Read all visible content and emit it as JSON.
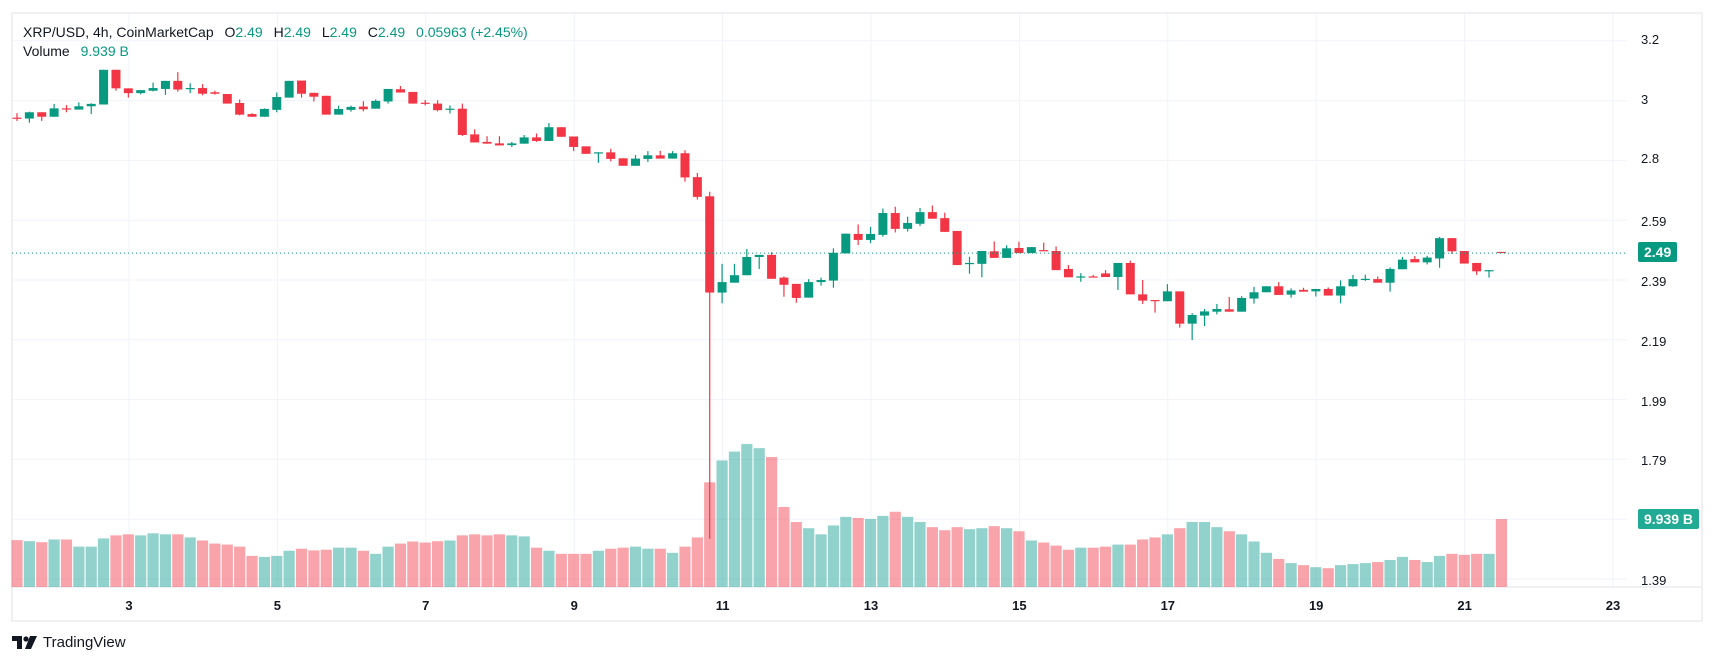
{
  "header": {
    "symbol": "XRP/USD, 4h, CoinMarketCap",
    "o_label": "O",
    "o_value": "2.49",
    "h_label": "H",
    "h_value": "2.49",
    "l_label": "L",
    "l_value": "2.49",
    "c_label": "C",
    "c_value": "2.49",
    "change": "0.05963 (+2.45%)",
    "volume_label": "Volume",
    "volume_value": "9.939 B"
  },
  "price_badge": "2.49",
  "volume_badge": "9.939 B",
  "brand": "TradingView",
  "colors": {
    "up": "#089981",
    "down": "#f23645",
    "up_volume": "rgba(38,166,154,0.5)",
    "down_volume": "rgba(242,54,69,0.45)",
    "grid": "#f0f3fa",
    "border": "#e0e3eb"
  },
  "chart_data": {
    "type": "candlestick",
    "title": "XRP/USD, 4h, CoinMarketCap",
    "interval": "4h",
    "last_price": 2.49,
    "volume_unit": "B",
    "y_ticks": [
      "3.2",
      "3",
      "2.8",
      "2.59",
      "2.39",
      "2.19",
      "1.99",
      "1.79",
      "1.39"
    ],
    "x_ticks": [
      "3",
      "5",
      "7",
      "9",
      "11",
      "13",
      "15",
      "17",
      "19",
      "21",
      "23"
    ],
    "ylim": [
      1.35,
      3.25
    ],
    "grid": true,
    "columns": [
      "open",
      "high",
      "low",
      "close",
      "volume_B"
    ],
    "candles": [
      [
        2.943,
        2.958,
        2.932,
        2.94,
        6.85
      ],
      [
        2.94,
        2.963,
        2.926,
        2.961,
        6.7
      ],
      [
        2.961,
        2.961,
        2.932,
        2.946,
        6.55
      ],
      [
        2.946,
        2.989,
        2.946,
        2.974,
        6.95
      ],
      [
        2.974,
        2.985,
        2.961,
        2.972,
        6.95
      ],
      [
        2.97,
        2.994,
        2.97,
        2.981,
        5.9
      ],
      [
        2.981,
        2.991,
        2.955,
        2.989,
        5.9
      ],
      [
        2.987,
        3.103,
        2.987,
        3.103,
        7.1
      ],
      [
        3.103,
        3.103,
        3.033,
        3.041,
        7.55
      ],
      [
        3.041,
        3.041,
        3.01,
        3.025,
        7.7
      ],
      [
        3.025,
        3.035,
        3.021,
        3.035,
        7.55
      ],
      [
        3.033,
        3.06,
        3.031,
        3.042,
        7.85
      ],
      [
        3.039,
        3.066,
        3.019,
        3.066,
        7.7
      ],
      [
        3.066,
        3.095,
        3.03,
        3.037,
        7.7
      ],
      [
        3.04,
        3.058,
        3.025,
        3.042,
        7.25
      ],
      [
        3.042,
        3.055,
        3.018,
        3.023,
        6.8
      ],
      [
        3.028,
        3.033,
        3.02,
        3.023,
        6.35
      ],
      [
        3.022,
        3.022,
        2.99,
        2.99,
        6.2
      ],
      [
        2.992,
        3.004,
        2.951,
        2.953,
        5.9
      ],
      [
        2.955,
        2.958,
        2.946,
        2.946,
        4.55
      ],
      [
        2.946,
        2.974,
        2.946,
        2.972,
        4.4
      ],
      [
        2.969,
        3.027,
        2.961,
        3.012,
        4.55
      ],
      [
        3.01,
        3.066,
        3.01,
        3.066,
        5.3
      ],
      [
        3.067,
        3.067,
        3.01,
        3.023,
        5.6
      ],
      [
        3.026,
        3.026,
        2.997,
        3.013,
        5.35
      ],
      [
        3.016,
        3.016,
        2.953,
        2.953,
        5.45
      ],
      [
        2.953,
        2.983,
        2.953,
        2.972,
        5.75
      ],
      [
        2.969,
        2.983,
        2.963,
        2.979,
        5.75
      ],
      [
        2.98,
        2.998,
        2.964,
        2.971,
        5.3
      ],
      [
        2.973,
        3.004,
        2.973,
        2.999,
        4.85
      ],
      [
        2.997,
        3.039,
        2.99,
        3.039,
        5.9
      ],
      [
        3.038,
        3.049,
        3.027,
        3.027,
        6.35
      ],
      [
        3.029,
        3.029,
        2.99,
        2.99,
        6.65
      ],
      [
        2.993,
        3.002,
        2.984,
        2.991,
        6.5
      ],
      [
        2.99,
        3.001,
        2.964,
        2.968,
        6.7
      ],
      [
        2.971,
        2.984,
        2.957,
        2.973,
        6.8
      ],
      [
        2.973,
        2.99,
        2.882,
        2.885,
        7.55
      ],
      [
        2.887,
        2.904,
        2.86,
        2.86,
        7.7
      ],
      [
        2.862,
        2.881,
        2.856,
        2.856,
        7.55
      ],
      [
        2.857,
        2.881,
        2.85,
        2.85,
        7.7
      ],
      [
        2.851,
        2.862,
        2.845,
        2.857,
        7.55
      ],
      [
        2.856,
        2.885,
        2.856,
        2.877,
        7.4
      ],
      [
        2.877,
        2.89,
        2.862,
        2.865,
        5.75
      ],
      [
        2.865,
        2.925,
        2.865,
        2.911,
        5.3
      ],
      [
        2.911,
        2.911,
        2.879,
        2.879,
        4.85
      ],
      [
        2.88,
        2.88,
        2.831,
        2.845,
        4.85
      ],
      [
        2.847,
        2.847,
        2.822,
        2.822,
        4.85
      ],
      [
        2.825,
        2.827,
        2.792,
        2.827,
        5.3
      ],
      [
        2.827,
        2.839,
        2.797,
        2.805,
        5.6
      ],
      [
        2.807,
        2.807,
        2.782,
        2.782,
        5.75
      ],
      [
        2.782,
        2.818,
        2.782,
        2.806,
        5.9
      ],
      [
        2.805,
        2.831,
        2.795,
        2.817,
        5.6
      ],
      [
        2.817,
        2.832,
        2.806,
        2.806,
        5.6
      ],
      [
        2.806,
        2.831,
        2.806,
        2.824,
        5.0
      ],
      [
        2.824,
        2.834,
        2.729,
        2.743,
        5.9
      ],
      [
        2.744,
        2.758,
        2.669,
        2.678,
        7.25
      ],
      [
        2.68,
        2.695,
        1.534,
        2.358,
        15.3
      ],
      [
        2.358,
        2.454,
        2.322,
        2.393,
        18.5
      ],
      [
        2.391,
        2.454,
        2.391,
        2.416,
        19.8
      ],
      [
        2.416,
        2.504,
        2.416,
        2.477,
        20.9
      ],
      [
        2.477,
        2.484,
        2.437,
        2.484,
        20.3
      ],
      [
        2.484,
        2.493,
        2.404,
        2.404,
        19.0
      ],
      [
        2.408,
        2.412,
        2.344,
        2.384,
        11.7
      ],
      [
        2.387,
        2.387,
        2.324,
        2.34,
        9.5
      ],
      [
        2.341,
        2.403,
        2.341,
        2.393,
        8.6
      ],
      [
        2.393,
        2.408,
        2.381,
        2.4,
        7.7
      ],
      [
        2.398,
        2.506,
        2.374,
        2.491,
        9.0
      ],
      [
        2.489,
        2.555,
        2.489,
        2.555,
        10.25
      ],
      [
        2.554,
        2.586,
        2.517,
        2.534,
        10.1
      ],
      [
        2.534,
        2.578,
        2.523,
        2.554,
        9.95
      ],
      [
        2.551,
        2.639,
        2.545,
        2.624,
        10.4
      ],
      [
        2.624,
        2.645,
        2.559,
        2.571,
        11.0
      ],
      [
        2.571,
        2.612,
        2.562,
        2.591,
        10.25
      ],
      [
        2.588,
        2.641,
        2.581,
        2.627,
        9.5
      ],
      [
        2.627,
        2.649,
        2.605,
        2.605,
        8.75
      ],
      [
        2.607,
        2.625,
        2.561,
        2.561,
        8.3
      ],
      [
        2.564,
        2.564,
        2.45,
        2.45,
        8.75
      ],
      [
        2.455,
        2.478,
        2.421,
        2.457,
        8.45
      ],
      [
        2.454,
        2.497,
        2.409,
        2.497,
        8.6
      ],
      [
        2.496,
        2.529,
        2.474,
        2.474,
        8.9
      ],
      [
        2.474,
        2.516,
        2.474,
        2.506,
        8.6
      ],
      [
        2.507,
        2.528,
        2.49,
        2.49,
        8.15
      ],
      [
        2.49,
        2.51,
        2.49,
        2.51,
        6.8
      ],
      [
        2.5,
        2.525,
        2.498,
        2.498,
        6.5
      ],
      [
        2.497,
        2.512,
        2.433,
        2.433,
        6.05
      ],
      [
        2.437,
        2.45,
        2.409,
        2.409,
        5.45
      ],
      [
        2.41,
        2.423,
        2.394,
        2.412,
        5.75
      ],
      [
        2.412,
        2.417,
        2.41,
        2.41,
        5.75
      ],
      [
        2.422,
        2.433,
        2.41,
        2.41,
        5.9
      ],
      [
        2.41,
        2.457,
        2.367,
        2.457,
        6.2
      ],
      [
        2.457,
        2.465,
        2.352,
        2.352,
        6.2
      ],
      [
        2.352,
        2.4,
        2.32,
        2.331,
        6.95
      ],
      [
        2.333,
        2.333,
        2.291,
        2.331,
        7.25
      ],
      [
        2.329,
        2.386,
        2.329,
        2.362,
        7.7
      ],
      [
        2.362,
        2.362,
        2.241,
        2.254,
        8.6
      ],
      [
        2.254,
        2.289,
        2.199,
        2.283,
        9.5
      ],
      [
        2.281,
        2.303,
        2.246,
        2.295,
        9.5
      ],
      [
        2.294,
        2.32,
        2.285,
        2.303,
        8.75
      ],
      [
        2.302,
        2.343,
        2.294,
        2.294,
        8.15
      ],
      [
        2.294,
        2.346,
        2.294,
        2.34,
        7.7
      ],
      [
        2.338,
        2.377,
        2.321,
        2.359,
        6.65
      ],
      [
        2.359,
        2.379,
        2.359,
        2.379,
        5.0
      ],
      [
        2.379,
        2.393,
        2.35,
        2.35,
        4.1
      ],
      [
        2.351,
        2.372,
        2.341,
        2.365,
        3.5
      ],
      [
        2.367,
        2.374,
        2.361,
        2.361,
        3.2
      ],
      [
        2.362,
        2.37,
        2.345,
        2.37,
        2.9
      ],
      [
        2.37,
        2.375,
        2.348,
        2.348,
        2.75
      ],
      [
        2.348,
        2.399,
        2.322,
        2.379,
        3.2
      ],
      [
        2.379,
        2.417,
        2.377,
        2.403,
        3.35
      ],
      [
        2.402,
        2.418,
        2.397,
        2.404,
        3.5
      ],
      [
        2.403,
        2.412,
        2.391,
        2.391,
        3.65
      ],
      [
        2.391,
        2.442,
        2.361,
        2.437,
        3.95
      ],
      [
        2.436,
        2.477,
        2.436,
        2.468,
        4.4
      ],
      [
        2.47,
        2.48,
        2.459,
        2.459,
        3.95
      ],
      [
        2.459,
        2.481,
        2.452,
        2.475,
        3.65
      ],
      [
        2.472,
        2.544,
        2.441,
        2.54,
        4.55
      ],
      [
        2.54,
        2.54,
        2.487,
        2.496,
        4.85
      ],
      [
        2.497,
        2.497,
        2.455,
        2.455,
        4.7
      ],
      [
        2.457,
        2.457,
        2.417,
        2.429,
        4.85
      ],
      [
        2.431,
        2.433,
        2.408,
        2.433,
        4.85
      ],
      [
        2.494,
        2.494,
        2.493,
        2.493,
        9.939
      ]
    ]
  }
}
